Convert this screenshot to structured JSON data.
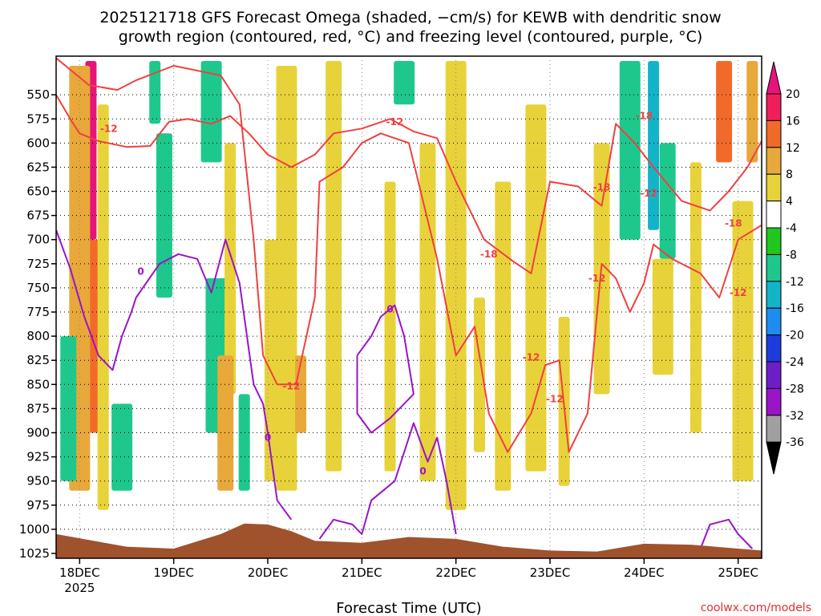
{
  "chart_data": {
    "type": "heatmap",
    "title_line1": "2025121718 GFS Forecast Omega (shaded, −cm/s) for KEWB with dendritic snow",
    "title_line2": "growth region (contoured, red, °C) and freezing level (contoured, purple, °C)",
    "xlabel": "Forecast Time (UTC)",
    "credit": "coolwx.com/models",
    "x_ticks": [
      {
        "label": "18DEC",
        "sub": "2025",
        "t": 0
      },
      {
        "label": "19DEC",
        "sub": "",
        "t": 1
      },
      {
        "label": "20DEC",
        "sub": "",
        "t": 2
      },
      {
        "label": "21DEC",
        "sub": "",
        "t": 3
      },
      {
        "label": "22DEC",
        "sub": "",
        "t": 4
      },
      {
        "label": "23DEC",
        "sub": "",
        "t": 5
      },
      {
        "label": "24DEC",
        "sub": "",
        "t": 6
      },
      {
        "label": "25DEC",
        "sub": "",
        "t": 7
      }
    ],
    "xlim": [
      -0.25,
      7.25
    ],
    "y_ticks": [
      550,
      575,
      600,
      625,
      650,
      675,
      700,
      725,
      750,
      775,
      800,
      825,
      850,
      875,
      900,
      925,
      950,
      975,
      1000,
      1025
    ],
    "ylim": [
      510,
      1030
    ],
    "colorbar": {
      "labels": [
        "20",
        "16",
        "12",
        "8",
        "4",
        "-4",
        "-8",
        "-12",
        "-16",
        "-20",
        "-24",
        "-28",
        "-32",
        "-36"
      ],
      "colors": [
        "#f01e5a",
        "#f26a2a",
        "#e8a83a",
        "#e8d23a",
        "#ffffff",
        "#1ec81e",
        "#1ec88c",
        "#14b4c8",
        "#1e8cf0",
        "#1e3cdc",
        "#6e1ec8",
        "#9a14c8",
        "#a0a0a0"
      ],
      "top_arrow_color": "#e6147a",
      "bottom_arrow_color": "#000000"
    },
    "omega_shading": [
      {
        "t": 0.12,
        "p0": 515,
        "p1": 700,
        "v": 22
      },
      {
        "t": 0.12,
        "p0": 700,
        "p1": 900,
        "v": 14
      },
      {
        "t": 0.0,
        "p0": 520,
        "p1": 960,
        "v": 8
      },
      {
        "t": 0.25,
        "p0": 560,
        "p1": 980,
        "v": 5
      },
      {
        "t": -0.12,
        "p0": 800,
        "p1": 950,
        "v": -8
      },
      {
        "t": 0.45,
        "p0": 870,
        "p1": 960,
        "v": -8
      },
      {
        "t": 0.8,
        "p0": 515,
        "p1": 580,
        "v": -8
      },
      {
        "t": 0.9,
        "p0": 590,
        "p1": 760,
        "v": -8
      },
      {
        "t": 1.45,
        "p0": 740,
        "p1": 900,
        "v": -8
      },
      {
        "t": 1.6,
        "p0": 600,
        "p1": 860,
        "v": 6
      },
      {
        "t": 1.55,
        "p0": 820,
        "p1": 960,
        "v": 10
      },
      {
        "t": 1.4,
        "p0": 515,
        "p1": 620,
        "v": -10
      },
      {
        "t": 1.75,
        "p0": 860,
        "p1": 960,
        "v": -10
      },
      {
        "t": 2.05,
        "p0": 700,
        "p1": 950,
        "v": 7
      },
      {
        "t": 2.2,
        "p0": 520,
        "p1": 960,
        "v": 5
      },
      {
        "t": 2.35,
        "p0": 820,
        "p1": 900,
        "v": 9
      },
      {
        "t": 2.7,
        "p0": 515,
        "p1": 940,
        "v": 5
      },
      {
        "t": 3.45,
        "p0": 515,
        "p1": 560,
        "v": -8
      },
      {
        "t": 3.3,
        "p0": 640,
        "p1": 940,
        "v": 5
      },
      {
        "t": 3.7,
        "p0": 600,
        "p1": 950,
        "v": 6
      },
      {
        "t": 4.0,
        "p0": 515,
        "p1": 980,
        "v": 4
      },
      {
        "t": 4.25,
        "p0": 760,
        "p1": 920,
        "v": 7
      },
      {
        "t": 4.5,
        "p0": 640,
        "p1": 960,
        "v": 5
      },
      {
        "t": 4.85,
        "p0": 560,
        "p1": 940,
        "v": 5
      },
      {
        "t": 5.15,
        "p0": 780,
        "p1": 955,
        "v": 5
      },
      {
        "t": 5.55,
        "p0": 600,
        "p1": 860,
        "v": 5
      },
      {
        "t": 5.85,
        "p0": 515,
        "p1": 700,
        "v": -8
      },
      {
        "t": 6.1,
        "p0": 515,
        "p1": 690,
        "v": -12
      },
      {
        "t": 6.25,
        "p0": 600,
        "p1": 720,
        "v": -8
      },
      {
        "t": 6.2,
        "p0": 720,
        "p1": 840,
        "v": 5
      },
      {
        "t": 6.55,
        "p0": 620,
        "p1": 900,
        "v": 5
      },
      {
        "t": 6.85,
        "p0": 515,
        "p1": 620,
        "v": 13
      },
      {
        "t": 7.05,
        "p0": 660,
        "p1": 950,
        "v": 6
      },
      {
        "t": 7.15,
        "p0": 515,
        "p1": 620,
        "v": 8
      }
    ],
    "terrain_pressure": [
      {
        "t": -0.25,
        "p": 1005
      },
      {
        "t": 0.5,
        "p": 1018
      },
      {
        "t": 1.0,
        "p": 1020
      },
      {
        "t": 1.5,
        "p": 1005
      },
      {
        "t": 1.75,
        "p": 994
      },
      {
        "t": 2.0,
        "p": 995
      },
      {
        "t": 2.25,
        "p": 1002
      },
      {
        "t": 2.5,
        "p": 1012
      },
      {
        "t": 3.0,
        "p": 1014
      },
      {
        "t": 3.5,
        "p": 1008
      },
      {
        "t": 4.0,
        "p": 1010
      },
      {
        "t": 4.5,
        "p": 1018
      },
      {
        "t": 5.0,
        "p": 1022
      },
      {
        "t": 5.5,
        "p": 1023
      },
      {
        "t": 6.0,
        "p": 1015
      },
      {
        "t": 6.5,
        "p": 1016
      },
      {
        "t": 7.0,
        "p": 1020
      },
      {
        "t": 7.25,
        "p": 1022
      }
    ],
    "terrain_color": "#a0522d",
    "dgz_color": "#f04040",
    "freezing_color": "#9a14c8",
    "contours": [
      {
        "kind": "dgz",
        "label": "-12",
        "label_at": {
          "t": 0.31,
          "p": 585
        },
        "points": [
          {
            "t": -0.25,
            "p": 550
          },
          {
            "t": -0.1,
            "p": 575
          },
          {
            "t": 0.0,
            "p": 590
          },
          {
            "t": 0.2,
            "p": 598
          },
          {
            "t": 0.5,
            "p": 604
          },
          {
            "t": 0.75,
            "p": 603
          },
          {
            "t": 0.95,
            "p": 578
          },
          {
            "t": 1.15,
            "p": 575
          },
          {
            "t": 1.4,
            "p": 580
          },
          {
            "t": 1.6,
            "p": 572
          },
          {
            "t": 1.8,
            "p": 590
          },
          {
            "t": 2.0,
            "p": 612
          },
          {
            "t": 2.25,
            "p": 625
          },
          {
            "t": 2.5,
            "p": 612
          },
          {
            "t": 2.7,
            "p": 590
          },
          {
            "t": 3.0,
            "p": 585
          },
          {
            "t": 3.3,
            "p": 575
          },
          {
            "t": 3.55,
            "p": 588
          },
          {
            "t": 3.8,
            "p": 595
          },
          {
            "t": 4.0,
            "p": 640
          },
          {
            "t": 4.3,
            "p": 700
          },
          {
            "t": 4.6,
            "p": 722
          },
          {
            "t": 4.8,
            "p": 735
          },
          {
            "t": 5.0,
            "p": 640
          },
          {
            "t": 5.3,
            "p": 645
          },
          {
            "t": 5.55,
            "p": 665
          },
          {
            "t": 5.7,
            "p": 580
          },
          {
            "t": 5.9,
            "p": 600
          },
          {
            "t": 6.1,
            "p": 625
          },
          {
            "t": 6.4,
            "p": 660
          },
          {
            "t": 6.7,
            "p": 670
          },
          {
            "t": 6.9,
            "p": 650
          },
          {
            "t": 7.1,
            "p": 625
          },
          {
            "t": 7.25,
            "p": 598
          }
        ]
      },
      {
        "kind": "dgz",
        "label": "-12",
        "label_at": {
          "t": 3.35,
          "p": 578
        },
        "points": [
          {
            "t": -0.25,
            "p": 512
          },
          {
            "t": 0.1,
            "p": 540
          },
          {
            "t": 0.4,
            "p": 545
          },
          {
            "t": 0.6,
            "p": 535
          },
          {
            "t": 1.0,
            "p": 520
          },
          {
            "t": 1.5,
            "p": 530
          },
          {
            "t": 1.7,
            "p": 560
          },
          {
            "t": 1.85,
            "p": 700
          },
          {
            "t": 1.95,
            "p": 820
          },
          {
            "t": 2.1,
            "p": 850
          },
          {
            "t": 2.3,
            "p": 850
          },
          {
            "t": 2.5,
            "p": 760
          },
          {
            "t": 2.55,
            "p": 640
          },
          {
            "t": 2.8,
            "p": 625
          },
          {
            "t": 3.0,
            "p": 600
          },
          {
            "t": 3.2,
            "p": 590
          },
          {
            "t": 3.5,
            "p": 600
          },
          {
            "t": 3.8,
            "p": 720
          },
          {
            "t": 4.0,
            "p": 820
          },
          {
            "t": 4.2,
            "p": 790
          },
          {
            "t": 4.35,
            "p": 880
          },
          {
            "t": 4.55,
            "p": 920
          },
          {
            "t": 4.8,
            "p": 880
          },
          {
            "t": 4.95,
            "p": 830
          },
          {
            "t": 5.1,
            "p": 825
          },
          {
            "t": 5.2,
            "p": 920
          },
          {
            "t": 5.4,
            "p": 880
          },
          {
            "t": 5.55,
            "p": 725
          },
          {
            "t": 5.7,
            "p": 740
          },
          {
            "t": 5.85,
            "p": 775
          },
          {
            "t": 6.0,
            "p": 745
          },
          {
            "t": 6.1,
            "p": 705
          },
          {
            "t": 6.3,
            "p": 720
          },
          {
            "t": 6.6,
            "p": 735
          },
          {
            "t": 6.8,
            "p": 760
          },
          {
            "t": 7.0,
            "p": 700
          },
          {
            "t": 7.25,
            "p": 685
          }
        ]
      },
      {
        "kind": "dgz",
        "label": "-18",
        "label_at": {
          "t": 4.35,
          "p": 715
        },
        "points": []
      },
      {
        "kind": "dgz",
        "label": "-18",
        "label_at": {
          "t": 5.55,
          "p": 646
        },
        "points": []
      },
      {
        "kind": "dgz",
        "label": "-18",
        "label_at": {
          "t": 6.0,
          "p": 572
        },
        "points": []
      },
      {
        "kind": "dgz",
        "label": "-18",
        "label_at": {
          "t": 6.95,
          "p": 683
        },
        "points": []
      },
      {
        "kind": "dgz",
        "label": "-12",
        "label_at": {
          "t": 2.25,
          "p": 852
        },
        "points": []
      },
      {
        "kind": "dgz",
        "label": "-12",
        "label_at": {
          "t": 4.8,
          "p": 822
        },
        "points": []
      },
      {
        "kind": "dgz",
        "label": "-12",
        "label_at": {
          "t": 5.5,
          "p": 740
        },
        "points": []
      },
      {
        "kind": "dgz",
        "label": "-12",
        "label_at": {
          "t": 7.0,
          "p": 755
        },
        "points": []
      },
      {
        "kind": "dgz",
        "label": "-12",
        "label_at": {
          "t": 5.05,
          "p": 865
        },
        "points": []
      },
      {
        "kind": "dgz",
        "label": "-12",
        "label_at": {
          "t": 6.05,
          "p": 652
        },
        "points": []
      },
      {
        "kind": "freezing",
        "label": "0",
        "label_at": {
          "t": 0.65,
          "p": 733
        },
        "points": [
          {
            "t": -0.25,
            "p": 690
          },
          {
            "t": -0.1,
            "p": 730
          },
          {
            "t": 0.05,
            "p": 780
          },
          {
            "t": 0.2,
            "p": 820
          },
          {
            "t": 0.35,
            "p": 835
          },
          {
            "t": 0.45,
            "p": 800
          },
          {
            "t": 0.55,
            "p": 775
          },
          {
            "t": 0.6,
            "p": 760
          },
          {
            "t": 0.85,
            "p": 725
          },
          {
            "t": 1.05,
            "p": 715
          },
          {
            "t": 1.25,
            "p": 720
          },
          {
            "t": 1.4,
            "p": 755
          },
          {
            "t": 1.55,
            "p": 700
          },
          {
            "t": 1.7,
            "p": 745
          },
          {
            "t": 1.85,
            "p": 850
          },
          {
            "t": 1.95,
            "p": 870
          },
          {
            "t": 2.0,
            "p": 900
          },
          {
            "t": 2.1,
            "p": 970
          },
          {
            "t": 2.25,
            "p": 990
          }
        ]
      },
      {
        "kind": "freezing",
        "label": "0",
        "label_at": {
          "t": 3.3,
          "p": 772
        },
        "points": [
          {
            "t": 2.95,
            "p": 820
          },
          {
            "t": 3.1,
            "p": 800
          },
          {
            "t": 3.2,
            "p": 780
          },
          {
            "t": 3.35,
            "p": 768
          },
          {
            "t": 3.45,
            "p": 800
          },
          {
            "t": 3.55,
            "p": 860
          },
          {
            "t": 3.45,
            "p": 870
          },
          {
            "t": 3.3,
            "p": 885
          },
          {
            "t": 3.1,
            "p": 900
          },
          {
            "t": 2.95,
            "p": 880
          },
          {
            "t": 2.95,
            "p": 820
          }
        ]
      },
      {
        "kind": "freezing",
        "label": "0",
        "label_at": {
          "t": 3.65,
          "p": 940
        },
        "points": [
          {
            "t": 2.55,
            "p": 1010
          },
          {
            "t": 2.7,
            "p": 990
          },
          {
            "t": 2.9,
            "p": 995
          },
          {
            "t": 3.0,
            "p": 1005
          },
          {
            "t": 3.1,
            "p": 970
          },
          {
            "t": 3.35,
            "p": 950
          },
          {
            "t": 3.55,
            "p": 890
          },
          {
            "t": 3.7,
            "p": 930
          },
          {
            "t": 3.8,
            "p": 905
          },
          {
            "t": 3.9,
            "p": 950
          },
          {
            "t": 4.0,
            "p": 1005
          }
        ]
      },
      {
        "kind": "freezing",
        "label": "0",
        "label_at": {
          "t": 2.0,
          "p": 905
        },
        "points": [
          {
            "t": 6.6,
            "p": 1020
          },
          {
            "t": 6.7,
            "p": 995
          },
          {
            "t": 6.9,
            "p": 990
          },
          {
            "t": 7.0,
            "p": 1005
          },
          {
            "t": 7.15,
            "p": 1020
          }
        ]
      }
    ]
  }
}
